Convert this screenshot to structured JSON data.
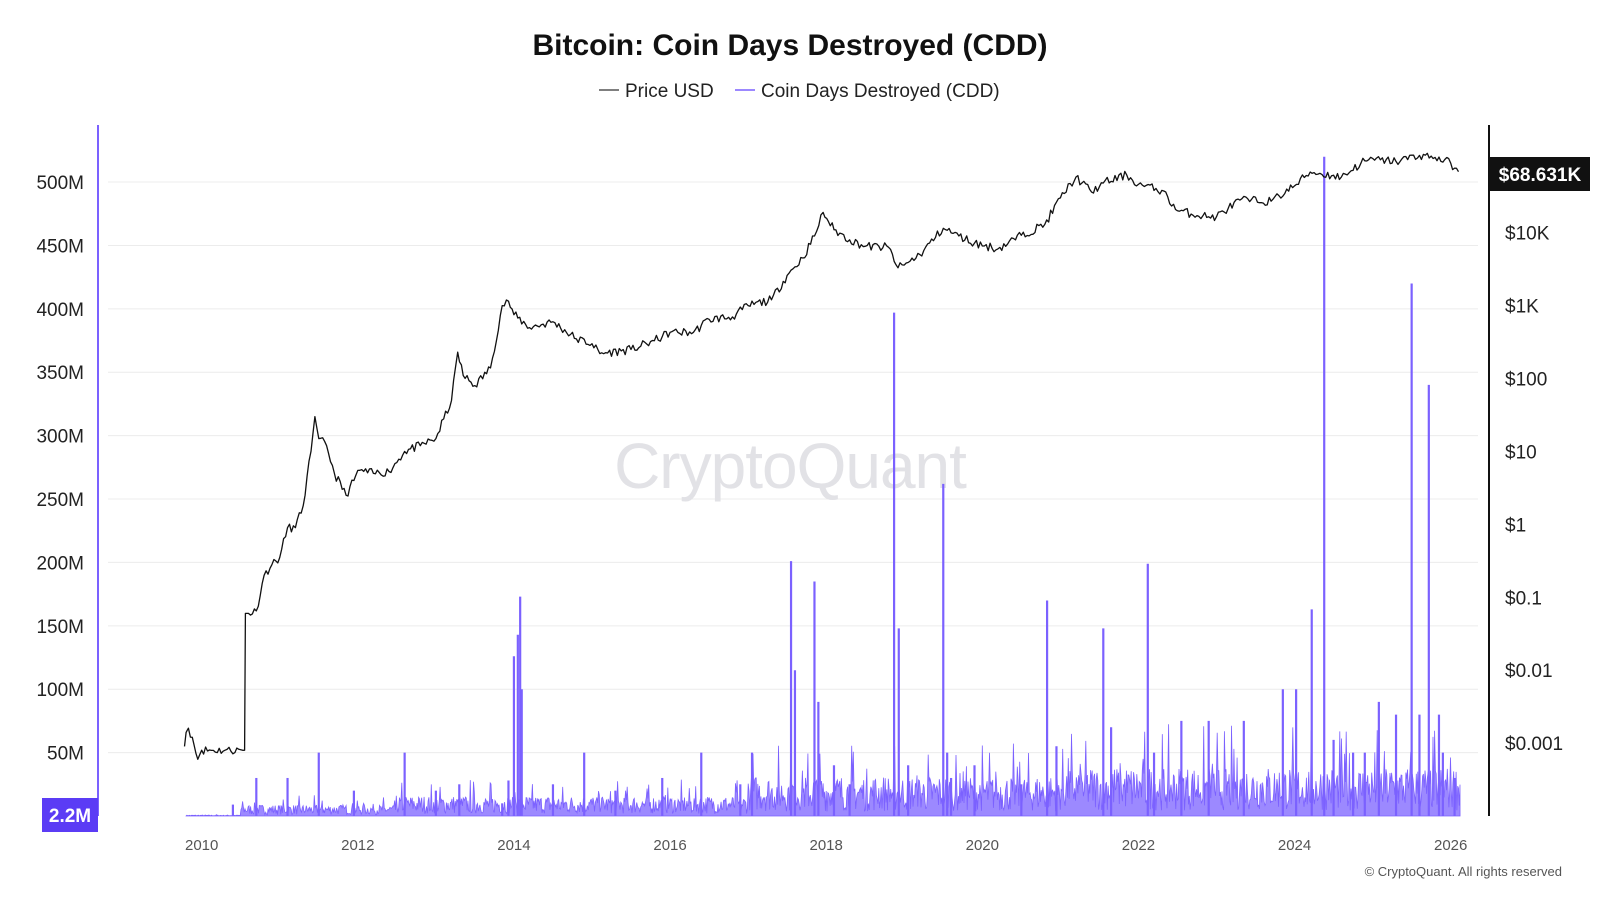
{
  "chart_data": {
    "type": "line",
    "title": "Bitcoin: Coin Days Destroyed (CDD)",
    "legend": [
      {
        "label": "Price USD",
        "color": "#555555"
      },
      {
        "label": "Coin Days Destroyed (CDD)",
        "color": "#7b61ff"
      }
    ],
    "legend_placement": "top-center",
    "grid": true,
    "y_left": {
      "ticks": [
        "50M",
        "100M",
        "150M",
        "200M",
        "250M",
        "300M",
        "350M",
        "400M",
        "450M",
        "500M"
      ],
      "tick_values": [
        50,
        100,
        150,
        200,
        250,
        300,
        350,
        400,
        450,
        500
      ],
      "unit": "millions",
      "range": [
        0,
        545
      ]
    },
    "y_right": {
      "scale": "log",
      "ticks": [
        "$0.001",
        "$0.01",
        "$0.1",
        "$1",
        "$10",
        "$100",
        "$1K",
        "$10K"
      ],
      "tick_values": [
        0.001,
        0.01,
        0.1,
        1,
        10,
        100,
        1000,
        10000
      ],
      "range": [
        0.0001,
        300000
      ]
    },
    "x_axis": {
      "ticks": [
        "2010",
        "2012",
        "2014",
        "2016",
        "2018",
        "2020",
        "2022",
        "2024",
        "2026"
      ],
      "tick_values": [
        2010,
        2012,
        2014,
        2016,
        2018,
        2020,
        2022,
        2024,
        2026
      ],
      "range": [
        2008.8,
        2026.35
      ]
    },
    "current_values": {
      "cdd_label": "2.2M",
      "price_label": "$68.631K"
    },
    "series": [
      {
        "name": "Price USD",
        "color": "#555555",
        "x": [
          2009.78,
          2009.8,
          2009.83,
          2009.88,
          2009.95,
          2010.0,
          2010.3,
          2010.55,
          2010.56,
          2010.6,
          2010.7,
          2010.8,
          2010.9,
          2011.0,
          2011.1,
          2011.2,
          2011.3,
          2011.4,
          2011.45,
          2011.5,
          2011.6,
          2011.7,
          2011.85,
          2011.95,
          2012.0,
          2012.2,
          2012.4,
          2012.6,
          2012.8,
          2013.0,
          2013.2,
          2013.28,
          2013.35,
          2013.5,
          2013.7,
          2013.85,
          2013.93,
          2014.0,
          2014.2,
          2014.5,
          2014.8,
          2015.0,
          2015.1,
          2015.5,
          2015.8,
          2016.0,
          2016.3,
          2016.5,
          2016.8,
          2017.0,
          2017.3,
          2017.5,
          2017.7,
          2017.85,
          2017.96,
          2018.1,
          2018.3,
          2018.5,
          2018.8,
          2018.92,
          2019.0,
          2019.2,
          2019.5,
          2019.7,
          2019.9,
          2020.2,
          2020.5,
          2020.8,
          2021.0,
          2021.2,
          2021.4,
          2021.55,
          2021.85,
          2022.0,
          2022.3,
          2022.5,
          2022.9,
          2023.0,
          2023.3,
          2023.7,
          2024.0,
          2024.2,
          2024.6,
          2024.9,
          2025.1,
          2025.3,
          2025.6,
          2025.8,
          2026.0,
          2026.1
        ],
        "values": [
          0.0009,
          0.0014,
          0.0016,
          0.0012,
          0.0006,
          0.0008,
          0.0008,
          0.0008,
          0.06,
          0.06,
          0.065,
          0.2,
          0.28,
          0.35,
          0.9,
          0.9,
          1.8,
          10,
          30,
          15,
          12,
          5,
          2.5,
          4,
          5.5,
          5,
          5.3,
          10,
          12,
          15,
          50,
          230,
          110,
          80,
          140,
          1000,
          1150,
          750,
          500,
          600,
          350,
          300,
          220,
          250,
          330,
          430,
          430,
          650,
          700,
          1000,
          1200,
          2600,
          4500,
          9000,
          19000,
          11000,
          8000,
          6500,
          6300,
          3300,
          3600,
          5000,
          11500,
          9000,
          7200,
          6000,
          9200,
          13000,
          30000,
          58000,
          36000,
          48000,
          62000,
          46000,
          38000,
          20000,
          16500,
          16600,
          28000,
          27000,
          44000,
          68000,
          58000,
          97000,
          100000,
          95000,
          115000,
          108000,
          90000,
          68631
        ]
      },
      {
        "name": "Coin Days Destroyed (CDD)",
        "color": "#7b61ff",
        "unit": "millions",
        "baseline_note": "dense daily bars; notable spikes listed",
        "x": [
          2010.4,
          2010.7,
          2011.1,
          2011.5,
          2011.95,
          2012.6,
          2013.0,
          2013.3,
          2013.85,
          2013.93,
          2014.0,
          2014.05,
          2014.08,
          2014.1,
          2014.5,
          2014.9,
          2015.3,
          2015.9,
          2016.4,
          2016.9,
          2017.05,
          2017.55,
          2017.6,
          2017.85,
          2017.9,
          2018.1,
          2018.3,
          2018.87,
          2018.93,
          2019.05,
          2019.5,
          2019.55,
          2019.6,
          2019.9,
          2020.5,
          2020.83,
          2020.95,
          2021.55,
          2021.65,
          2022.12,
          2022.2,
          2022.55,
          2022.9,
          2023.35,
          2023.85,
          2024.02,
          2024.22,
          2024.38,
          2024.5,
          2024.75,
          2024.9,
          2025.08,
          2025.3,
          2025.5,
          2025.6,
          2025.72,
          2025.85,
          2025.9,
          2026.05
        ],
        "values": [
          9,
          30,
          30,
          50,
          20,
          50,
          20,
          25,
          10,
          28,
          126,
          143,
          173,
          100,
          25,
          50,
          20,
          30,
          50,
          25,
          50,
          201,
          115,
          185,
          90,
          40,
          25,
          397,
          148,
          40,
          262,
          50,
          30,
          40,
          25,
          170,
          55,
          148,
          70,
          199,
          50,
          75,
          75,
          75,
          100,
          100,
          163,
          520,
          60,
          50,
          50,
          90,
          80,
          420,
          80,
          340,
          80,
          50,
          30
        ]
      }
    ]
  },
  "watermark": "CryptoQuant",
  "copyright": "© CryptoQuant. All rights reserved",
  "colors": {
    "cdd": "#7b61ff",
    "price": "#111111",
    "cdd_badge_bg": "#5b3cf5",
    "price_badge_bg": "#111111",
    "grid": "#ececec"
  }
}
